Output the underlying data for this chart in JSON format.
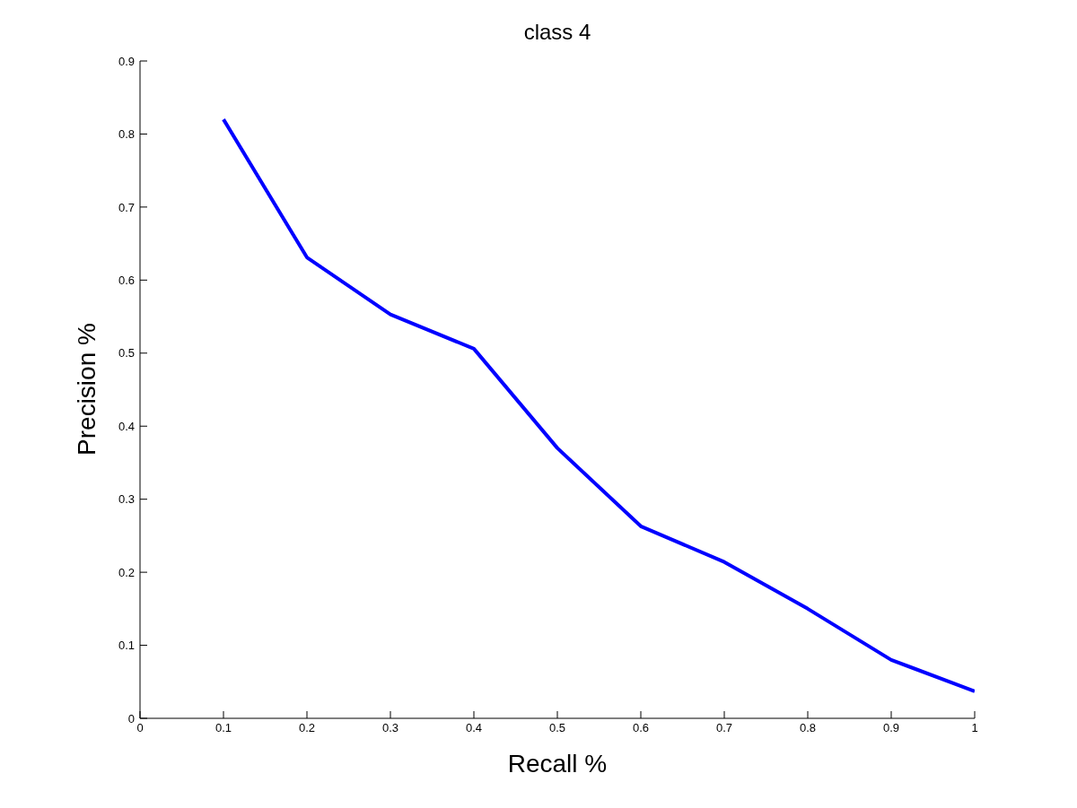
{
  "chart_data": {
    "type": "line",
    "title": "class 4",
    "xlabel": "Recall %",
    "ylabel": "Precision %",
    "x": [
      0.1,
      0.2,
      0.3,
      0.4,
      0.5,
      0.6,
      0.7,
      0.8,
      0.9,
      1.0
    ],
    "series": [
      {
        "color": "#0000ff",
        "values": [
          0.82,
          0.631,
          0.553,
          0.506,
          0.37,
          0.263,
          0.214,
          0.15,
          0.08,
          0.037
        ]
      }
    ],
    "xlim": [
      0,
      1
    ],
    "xticks": [
      0,
      0.1,
      0.2,
      0.3,
      0.4,
      0.5,
      0.6,
      0.7,
      0.8,
      0.9,
      1
    ],
    "ylim": [
      0,
      0.9
    ],
    "yticks": [
      0,
      0.1,
      0.2,
      0.3,
      0.4,
      0.5,
      0.6,
      0.7,
      0.8,
      0.9
    ],
    "grid": false,
    "legend": false,
    "marker": "none",
    "line_style": "solid"
  }
}
